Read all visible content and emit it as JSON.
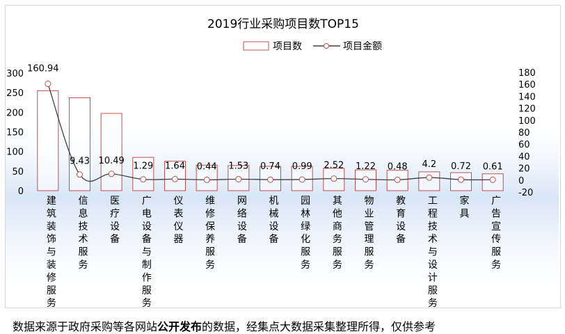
{
  "chart_data": {
    "type": "bar",
    "title": "2019行业采购项目数TOP15",
    "categories": [
      "建筑装饰与装修服务",
      "信息技术服务",
      "医疗设备",
      "广电设备与制作服务",
      "仪表仪器",
      "维修保养服务",
      "网络设备",
      "机械设备",
      "园林绿化服务",
      "其他商务服务",
      "物业管理服务",
      "教育设备",
      "工程技术与设计服务",
      "家具",
      "广告宣传服务"
    ],
    "series": [
      {
        "name": "项目数",
        "type": "bar",
        "axis": "left",
        "values": [
          255,
          237,
          197,
          85,
          75,
          65,
          64,
          62,
          62,
          57,
          53,
          52,
          48,
          46,
          43
        ],
        "color": "#c0504d",
        "fill": "#ffffff"
      },
      {
        "name": "项目金额",
        "type": "line",
        "axis": "right",
        "values": [
          160.94,
          9.43,
          10.49,
          1.29,
          1.64,
          0.44,
          1.53,
          0.74,
          0.99,
          2.52,
          1.22,
          0.48,
          4.2,
          0.72,
          0.61
        ],
        "labels": [
          "160.94",
          "9.43",
          "10.49",
          "1.29",
          "1.64",
          "0.44",
          "1.53",
          "0.74",
          "0.99",
          "2.52",
          "1.22",
          "0.48",
          "4.2",
          "0.72",
          "0.61"
        ],
        "color": "#404040",
        "marker_stroke": "#c0504d"
      }
    ],
    "left_axis": {
      "min": 0,
      "max": 300,
      "ticks": [
        "0",
        "50",
        "100",
        "150",
        "200",
        "250",
        "300"
      ]
    },
    "right_axis": {
      "min": -20,
      "max": 180,
      "ticks": [
        "-20",
        "0",
        "20",
        "40",
        "60",
        "80",
        "100",
        "120",
        "140",
        "160",
        "180"
      ]
    },
    "legend_position": "top",
    "grid": false
  },
  "footnote": {
    "before": "数据来源于政府采购等各网站",
    "bold": "公开发布",
    "after": "的数据，经集点大数据采集整理所得，仅供参考"
  }
}
